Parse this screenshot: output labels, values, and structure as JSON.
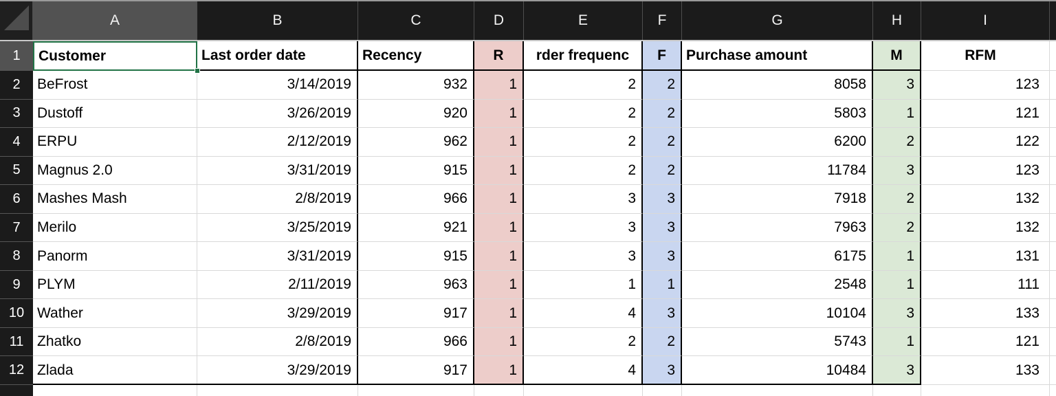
{
  "sheet": {
    "select_all_corner": {
      "icon": "select-all-triangle"
    },
    "column_headers": [
      "A",
      "B",
      "C",
      "D",
      "E",
      "F",
      "G",
      "H",
      "I"
    ],
    "row_headers": [
      "1",
      "2",
      "3",
      "4",
      "5",
      "6",
      "7",
      "8",
      "9",
      "10",
      "11",
      "12"
    ],
    "header_row": [
      "Customer",
      "Last order date",
      "Recency",
      "R",
      "rder frequenc",
      "F",
      "Purchase amount",
      "M",
      "RFM"
    ],
    "rows": [
      [
        "BeFrost",
        "3/14/2019",
        "932",
        "1",
        "2",
        "2",
        "8058",
        "3",
        "123"
      ],
      [
        "Dustoff",
        "3/26/2019",
        "920",
        "1",
        "2",
        "2",
        "5803",
        "1",
        "121"
      ],
      [
        "ERPU",
        "2/12/2019",
        "962",
        "1",
        "2",
        "2",
        "6200",
        "2",
        "122"
      ],
      [
        "Magnus 2.0",
        "3/31/2019",
        "915",
        "1",
        "2",
        "2",
        "11784",
        "3",
        "123"
      ],
      [
        "Mashes Mash",
        "2/8/2019",
        "966",
        "1",
        "3",
        "3",
        "7918",
        "2",
        "132"
      ],
      [
        "Merilo",
        "3/25/2019",
        "921",
        "1",
        "3",
        "3",
        "7963",
        "2",
        "132"
      ],
      [
        "Panorm",
        "3/31/2019",
        "915",
        "1",
        "3",
        "3",
        "6175",
        "1",
        "131"
      ],
      [
        "PLYM",
        "2/11/2019",
        "963",
        "1",
        "1",
        "1",
        "2548",
        "1",
        "111"
      ],
      [
        "Wather",
        "3/29/2019",
        "917",
        "1",
        "4",
        "3",
        "10104",
        "3",
        "133"
      ],
      [
        "Zhatko",
        "2/8/2019",
        "966",
        "1",
        "2",
        "2",
        "5743",
        "1",
        "121"
      ],
      [
        "Zlada",
        "3/29/2019",
        "917",
        "1",
        "4",
        "3",
        "10484",
        "3",
        "133"
      ]
    ],
    "selection": {
      "active_cell": "A1",
      "selected_column": "A",
      "selected_row": "1"
    },
    "colors": {
      "r_column_fill": "#edcdca",
      "f_column_fill": "#c9d6f0",
      "m_column_fill": "#dbe9d6",
      "selection_border": "#217346",
      "header_strip_bg": "#1b1b1b",
      "selected_header_bg": "#525252",
      "gridline": "#d9d9d9",
      "table_border": "#000000"
    }
  }
}
